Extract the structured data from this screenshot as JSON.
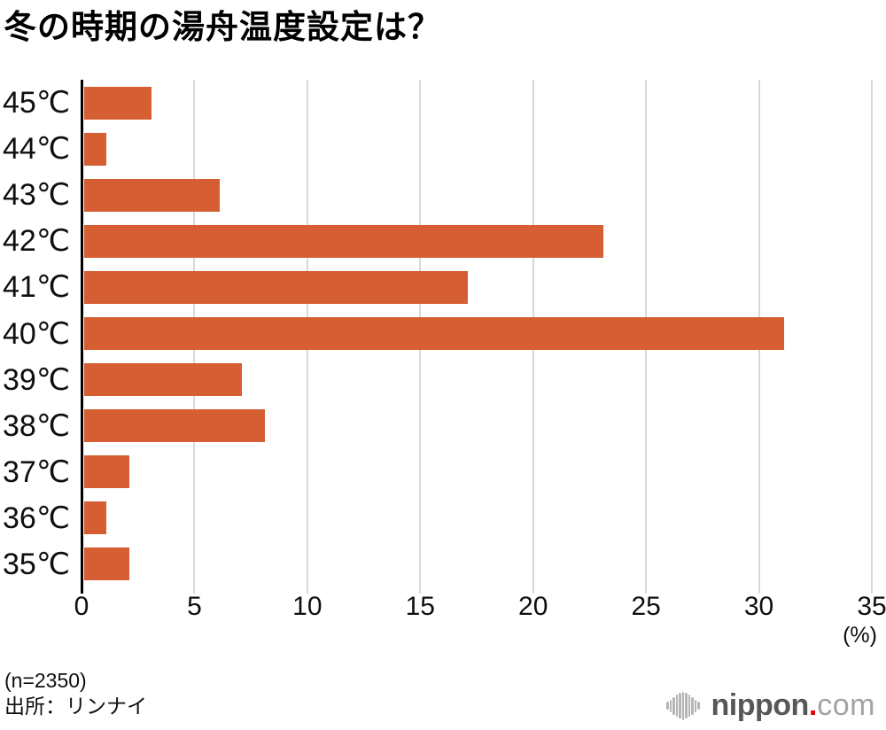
{
  "title": "冬の時期の湯舟温度設定は？",
  "footer": {
    "sample_size": "(n=2350)",
    "source": "出所：リンナイ"
  },
  "logo": {
    "name": "nippon.com",
    "text_main": "nippon",
    "text_dot": ".",
    "text_tld": "com"
  },
  "colors": {
    "bar": "#d55e32",
    "axis": "#000000",
    "gridline": "#d9d9d9",
    "logo_main": "#575757",
    "logo_tld": "#a3a3a3",
    "logo_dot": "#e60012",
    "logo_icon": "#b5b5b5"
  },
  "chart_data": {
    "type": "bar",
    "orientation": "horizontal",
    "title": "冬の時期の湯舟温度設定は？",
    "categories": [
      "45℃",
      "44℃",
      "43℃",
      "42℃",
      "41℃",
      "40℃",
      "39℃",
      "38℃",
      "37℃",
      "36℃",
      "35℃"
    ],
    "values": [
      3,
      1,
      6,
      23,
      17,
      31,
      7,
      8,
      2,
      1,
      2
    ],
    "unit": "%",
    "xlabel": "(%)",
    "xlim": [
      0,
      35
    ],
    "xticks": [
      0,
      5,
      10,
      15,
      20,
      25,
      30,
      35
    ],
    "grid": true,
    "legend": null
  }
}
